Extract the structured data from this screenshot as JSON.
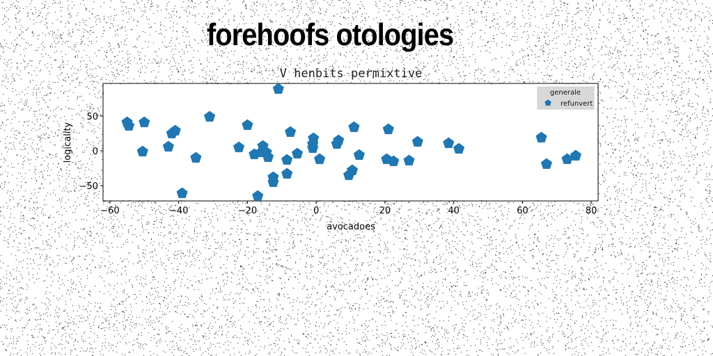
{
  "page": {
    "suptitle": "forehoofs otologies"
  },
  "chart_data": {
    "type": "scatter",
    "title": "V henbits permixtive",
    "xlabel": "avocadoes",
    "ylabel": "logicality",
    "xlim": [
      -62,
      82
    ],
    "ylim": [
      -72,
      97
    ],
    "xticks": [
      -60,
      -40,
      -20,
      0,
      20,
      40,
      60,
      80
    ],
    "yticks": [
      -50,
      0,
      50
    ],
    "grid": false,
    "legend": {
      "title": "generale",
      "placement": "top-right"
    },
    "series": [
      {
        "name": "refunvert",
        "color": "#1f77b4",
        "marker": "pentagon",
        "points": [
          [
            -55,
            41
          ],
          [
            -54.5,
            36
          ],
          [
            -50,
            41
          ],
          [
            -50.5,
            -1
          ],
          [
            -43,
            6
          ],
          [
            -42,
            25
          ],
          [
            -41,
            29
          ],
          [
            -39,
            -61
          ],
          [
            -35,
            -10
          ],
          [
            -31,
            49
          ],
          [
            -22.5,
            5
          ],
          [
            -20,
            37
          ],
          [
            -18,
            -5
          ],
          [
            -17,
            -65
          ],
          [
            -16,
            -2
          ],
          [
            -15.5,
            7
          ],
          [
            -14.5,
            -2
          ],
          [
            -14,
            -9
          ],
          [
            -12.5,
            -38
          ],
          [
            -12.5,
            -45
          ],
          [
            -11,
            89
          ],
          [
            -8.5,
            -13
          ],
          [
            -8.5,
            -33
          ],
          [
            -7.5,
            27
          ],
          [
            -5.5,
            -4
          ],
          [
            -1,
            4
          ],
          [
            -1,
            10
          ],
          [
            -0.8,
            18
          ],
          [
            1,
            -12
          ],
          [
            6,
            10
          ],
          [
            6.5,
            15
          ],
          [
            9.5,
            -35
          ],
          [
            10.5,
            -28
          ],
          [
            11,
            34
          ],
          [
            12.5,
            -6
          ],
          [
            20.5,
            -12
          ],
          [
            21,
            31
          ],
          [
            22.5,
            -15
          ],
          [
            27,
            -14
          ],
          [
            29.5,
            13
          ],
          [
            38.5,
            11
          ],
          [
            41.5,
            3
          ],
          [
            65.5,
            19
          ],
          [
            67,
            -19
          ],
          [
            73,
            -12
          ],
          [
            75.5,
            -7
          ]
        ]
      }
    ]
  }
}
